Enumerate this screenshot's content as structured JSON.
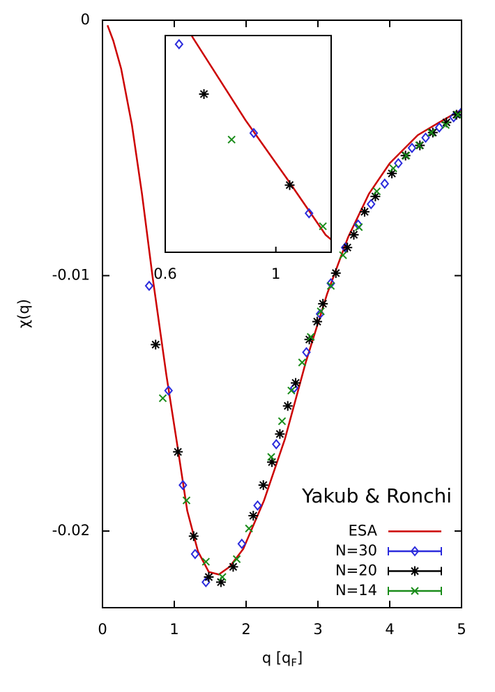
{
  "chart_data": {
    "type": "line",
    "ylabel": "χ(q)",
    "xlabel": [
      "q [q",
      "F",
      "]"
    ],
    "annotation": "Yakub & Ronchi",
    "xlim": [
      0,
      5
    ],
    "xticks": [
      0,
      1,
      2,
      3,
      4,
      5
    ],
    "ylim": [
      -0.023,
      0
    ],
    "yticks": [
      0,
      -0.01,
      -0.02
    ],
    "legend": "lower right",
    "series": [
      {
        "name": "ESA",
        "color": "#cc0000",
        "marker": "none",
        "x": [
          0.07,
          0.15,
          0.26,
          0.41,
          0.55,
          0.7,
          0.89,
          1.04,
          1.18,
          1.33,
          1.48,
          1.62,
          1.77,
          1.96,
          2.25,
          2.54,
          2.83,
          3.13,
          3.42,
          3.71,
          4.0,
          4.39,
          4.69,
          5.0
        ],
        "values": [
          -0.0002,
          -0.0008,
          -0.0019,
          -0.0041,
          -0.0068,
          -0.0101,
          -0.0139,
          -0.0166,
          -0.0192,
          -0.0208,
          -0.0216,
          -0.0217,
          -0.0214,
          -0.0207,
          -0.0188,
          -0.0164,
          -0.0134,
          -0.0107,
          -0.0085,
          -0.0068,
          -0.0056,
          -0.0045,
          -0.004,
          -0.0035
        ]
      },
      {
        "name": "N=30",
        "color": "#2b2bdc",
        "marker": "diamond",
        "x": [
          0.65,
          0.92,
          1.12,
          1.29,
          1.44,
          1.94,
          2.16,
          2.42,
          2.67,
          2.84,
          3.03,
          3.18,
          3.38,
          3.56,
          3.74,
          3.93,
          4.12,
          4.31,
          4.5,
          4.69,
          4.89,
          5.0
        ],
        "values": [
          -0.0104,
          -0.0145,
          -0.0182,
          -0.0209,
          -0.022,
          -0.0205,
          -0.019,
          -0.0166,
          -0.0144,
          -0.013,
          -0.0115,
          -0.0103,
          -0.0089,
          -0.008,
          -0.0072,
          -0.0064,
          -0.0056,
          -0.005,
          -0.0046,
          -0.0042,
          -0.0038,
          -0.0036
        ]
      },
      {
        "name": "N=20",
        "color": "#000000",
        "marker": "star",
        "x": [
          0.74,
          1.05,
          1.27,
          1.48,
          1.65,
          1.82,
          2.1,
          2.24,
          2.36,
          2.47,
          2.58,
          2.69,
          2.88,
          2.99,
          3.07,
          3.25,
          3.41,
          3.5,
          3.65,
          3.8,
          4.03,
          4.22,
          4.42,
          4.6,
          4.79,
          4.93
        ],
        "values": [
          -0.0127,
          -0.0169,
          -0.0202,
          -0.0218,
          -0.022,
          -0.0214,
          -0.0194,
          -0.0182,
          -0.0173,
          -0.0162,
          -0.0151,
          -0.0142,
          -0.0125,
          -0.0118,
          -0.0111,
          -0.0099,
          -0.0089,
          -0.0084,
          -0.0075,
          -0.0069,
          -0.006,
          -0.0053,
          -0.0049,
          -0.0044,
          -0.004,
          -0.0037
        ]
      },
      {
        "name": "N=14",
        "color": "#1a8c1a",
        "marker": "cross",
        "x": [
          0.84,
          1.17,
          1.44,
          1.67,
          1.87,
          2.04,
          2.35,
          2.5,
          2.63,
          2.78,
          2.9,
          3.04,
          3.18,
          3.35,
          3.57,
          3.82,
          4.05,
          4.23,
          4.41,
          4.58,
          4.78,
          4.95
        ],
        "values": [
          -0.0148,
          -0.0188,
          -0.0212,
          -0.0218,
          -0.0211,
          -0.0199,
          -0.0171,
          -0.0157,
          -0.0145,
          -0.0134,
          -0.0124,
          -0.0114,
          -0.0104,
          -0.0092,
          -0.0081,
          -0.0067,
          -0.0058,
          -0.0053,
          -0.0049,
          -0.0044,
          -0.0041,
          -0.0037
        ]
      }
    ],
    "inset": {
      "xlim": [
        0.6,
        1.2
      ],
      "xticks": [
        0.6,
        1
      ],
      "ylim": [
        -0.02,
        -0.01
      ]
    }
  }
}
